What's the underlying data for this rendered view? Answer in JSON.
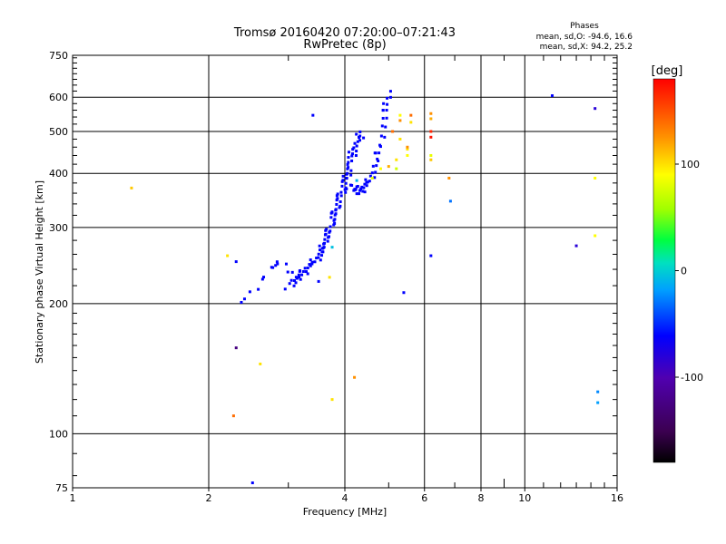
{
  "chart_data": {
    "type": "scatter",
    "title": "Tromsø 20160420 07:20:00–07:21:43",
    "subtitle": "RwPretec (8p)",
    "xlabel": "Frequency [MHz]",
    "ylabel": "Stationary phase Virtual Height [km]",
    "x_scale": "log",
    "y_scale": "log",
    "xlim": [
      1,
      16
    ],
    "ylim": [
      75,
      750
    ],
    "x_ticks": [
      1,
      2,
      4,
      6,
      8,
      10,
      16
    ],
    "y_ticks": [
      75,
      100,
      200,
      300,
      400,
      500,
      600,
      750
    ],
    "grid": true,
    "stats": {
      "heading": "Phases",
      "line1": "mean, sd,O: -94.6, 16.6",
      "line2": "mean, sd,X:  94.2, 25.2"
    },
    "colorbar": {
      "label": "[deg]",
      "range": [
        -180,
        180
      ],
      "ticks": [
        100,
        0,
        -100
      ]
    },
    "blue_phase": -110,
    "o_trace": [
      [
        3.0,
        220
      ],
      [
        3.1,
        226
      ],
      [
        3.2,
        233
      ],
      [
        3.3,
        240
      ],
      [
        3.4,
        248
      ],
      [
        3.5,
        257
      ],
      [
        3.55,
        265
      ],
      [
        3.6,
        275
      ],
      [
        3.65,
        285
      ],
      [
        3.7,
        297
      ],
      [
        3.75,
        310
      ],
      [
        3.8,
        323
      ],
      [
        3.85,
        337
      ],
      [
        3.9,
        352
      ],
      [
        3.95,
        368
      ],
      [
        4.0,
        385
      ],
      [
        4.05,
        400
      ],
      [
        4.1,
        418
      ],
      [
        4.15,
        440
      ],
      [
        4.2,
        460
      ],
      [
        4.3,
        480
      ],
      [
        4.35,
        500
      ]
    ],
    "x_trace": [
      [
        4.1,
        375
      ],
      [
        4.2,
        368
      ],
      [
        4.3,
        365
      ],
      [
        4.4,
        368
      ],
      [
        4.5,
        380
      ],
      [
        4.6,
        400
      ],
      [
        4.7,
        430
      ],
      [
        4.8,
        470
      ],
      [
        4.9,
        530
      ],
      [
        4.95,
        580
      ],
      [
        5.0,
        620
      ]
    ],
    "lower_trace": [
      [
        2.4,
        205
      ],
      [
        2.6,
        225
      ],
      [
        2.8,
        245
      ],
      [
        2.85,
        250
      ],
      [
        3.1,
        232
      ],
      [
        3.3,
        248
      ]
    ],
    "scattered_points": [
      [
        1.35,
        370,
        120
      ],
      [
        2.2,
        258,
        110
      ],
      [
        2.3,
        250,
        -110
      ],
      [
        2.3,
        158,
        -140
      ],
      [
        2.27,
        110,
        150
      ],
      [
        2.5,
        77,
        -110
      ],
      [
        2.6,
        145,
        110
      ],
      [
        2.4,
        205,
        -110
      ],
      [
        3.4,
        545,
        -110
      ],
      [
        3.5,
        225,
        -110
      ],
      [
        3.7,
        230,
        110
      ],
      [
        3.75,
        270,
        -20
      ],
      [
        3.75,
        120,
        110
      ],
      [
        3.75,
        325,
        -110
      ],
      [
        4.2,
        135,
        140
      ],
      [
        4.25,
        385,
        -30
      ],
      [
        4.6,
        390,
        90
      ],
      [
        4.8,
        410,
        100
      ],
      [
        5.0,
        415,
        130
      ],
      [
        5.2,
        430,
        110
      ],
      [
        5.2,
        410,
        80
      ],
      [
        5.3,
        480,
        110
      ],
      [
        5.3,
        530,
        140
      ],
      [
        5.3,
        545,
        100
      ],
      [
        5.1,
        500,
        150
      ],
      [
        5.5,
        440,
        100
      ],
      [
        5.5,
        455,
        110
      ],
      [
        5.5,
        460,
        140
      ],
      [
        5.4,
        212,
        -110
      ],
      [
        5.6,
        525,
        110
      ],
      [
        5.6,
        545,
        150
      ],
      [
        6.2,
        550,
        140
      ],
      [
        6.2,
        535,
        130
      ],
      [
        6.2,
        500,
        170
      ],
      [
        6.2,
        485,
        175
      ],
      [
        6.2,
        440,
        90
      ],
      [
        6.2,
        430,
        120
      ],
      [
        6.2,
        258,
        -110
      ],
      [
        6.8,
        390,
        140
      ],
      [
        6.85,
        345,
        -60
      ],
      [
        11.5,
        605,
        -110
      ],
      [
        13.0,
        272,
        -120
      ],
      [
        14.3,
        565,
        -120
      ],
      [
        14.3,
        390,
        100
      ],
      [
        14.3,
        287,
        100
      ],
      [
        14.5,
        125,
        -50
      ],
      [
        14.5,
        118,
        -40
      ]
    ]
  }
}
